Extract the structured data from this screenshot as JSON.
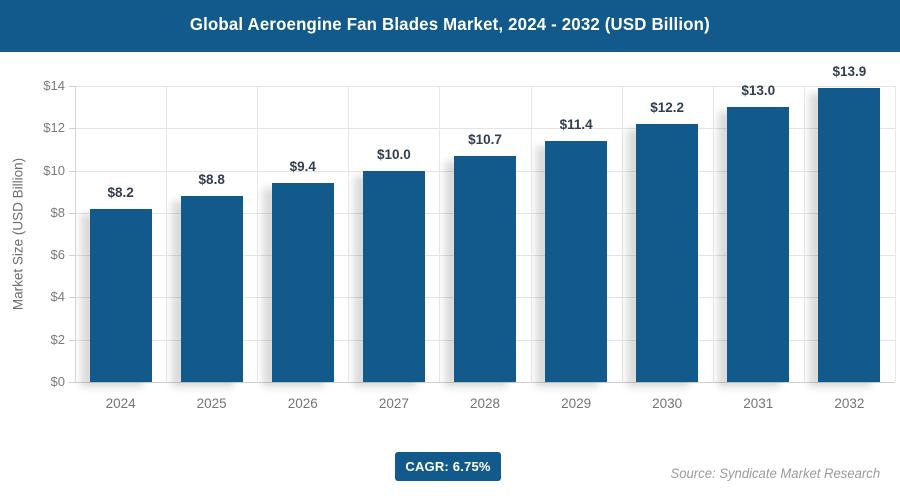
{
  "header": {
    "title": "Global Aeroengine Fan Blades Market, 2024 - 2032 (USD Billion)",
    "bg_color": "#135a8c"
  },
  "chart_data": {
    "type": "bar",
    "title": "Global Aeroengine Fan Blades Market, 2024 - 2032 (USD Billion)",
    "categories": [
      "2024",
      "2025",
      "2026",
      "2027",
      "2028",
      "2029",
      "2030",
      "2031",
      "2032"
    ],
    "values": [
      8.2,
      8.8,
      9.4,
      10.0,
      10.7,
      11.4,
      12.2,
      13.0,
      13.9
    ],
    "value_labels": [
      "$8.2",
      "$8.8",
      "$9.4",
      "$10.0",
      "$10.7",
      "$11.4",
      "$12.2",
      "$13.0",
      "$13.9"
    ],
    "xlabel": "",
    "ylabel": "Market Size (USD Billion)",
    "ylim": [
      0,
      14
    ],
    "ytick_values": [
      0,
      2,
      4,
      6,
      8,
      10,
      12,
      14
    ],
    "ytick_labels": [
      "$0",
      "$2",
      "$4",
      "$6",
      "$8",
      "$10",
      "$12",
      "$14"
    ],
    "grid": true,
    "legend": false,
    "bar_color": "#135a8c",
    "value_label_color": "#333f50"
  },
  "footer": {
    "cagr_label": "CAGR: 6.75%",
    "source": "Source: Syndicate Market Research"
  }
}
